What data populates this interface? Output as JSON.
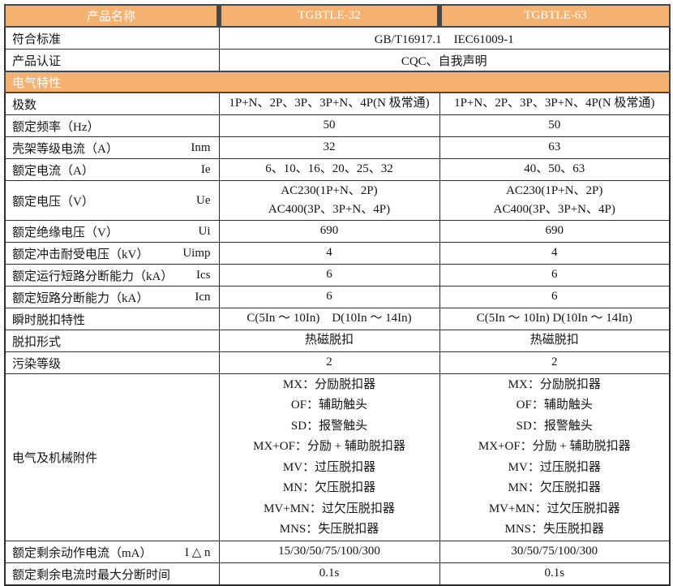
{
  "colors": {
    "accent_orange": "#F4B170",
    "header_text": "#FFFFFF",
    "grid_line": "#2E2E2E",
    "body_text": "#141414",
    "page_background": "#FFFFFF"
  },
  "table": {
    "columns": [
      "产品名称",
      "TGBTLE-32",
      "TGBTLE-63"
    ],
    "rows": [
      {
        "type": "header",
        "cells": [
          "产品名称",
          "TGBTLE-32",
          "TGBTLE-63"
        ]
      },
      {
        "type": "span",
        "label": "符合标准",
        "value": "GB/T16917.1　IEC61009-1"
      },
      {
        "type": "span",
        "label": "产品认证",
        "value": "CQC、自我声明"
      },
      {
        "type": "section",
        "label": "电气特性"
      },
      {
        "type": "normal",
        "label": "极数",
        "symbol": "",
        "values": [
          [
            "1P+N、2P、3P、3P+N、4P(N 极常通)"
          ],
          [
            "1P+N、2P、3P、3P+N、4P(N 极常通)"
          ]
        ]
      },
      {
        "type": "normal",
        "label": "额定频率（Hz）",
        "symbol": "",
        "values": [
          [
            "50"
          ],
          [
            "50"
          ]
        ]
      },
      {
        "type": "normal",
        "label": "壳架等级电流（A）",
        "symbol": "Inm",
        "values": [
          [
            "32"
          ],
          [
            "63"
          ]
        ]
      },
      {
        "type": "normal",
        "label": "额定电流（A）",
        "symbol": "Ie",
        "values": [
          [
            "6、10、16、20、25、32"
          ],
          [
            "40、50、63"
          ]
        ]
      },
      {
        "type": "normal",
        "label": "额定电压（V）",
        "symbol": "Ue",
        "values": [
          [
            "AC230(1P+N、2P)",
            "AC400(3P、3P+N、4P)"
          ],
          [
            "AC230(1P+N、2P)",
            "AC400(3P、3P+N、4P)"
          ]
        ]
      },
      {
        "type": "normal",
        "label": "额定绝缘电压（V）",
        "symbol": "Ui",
        "values": [
          [
            "690"
          ],
          [
            "690"
          ]
        ]
      },
      {
        "type": "normal",
        "label": "额定冲击耐受电压（kV）",
        "symbol": "Uimp",
        "values": [
          [
            "4"
          ],
          [
            "4"
          ]
        ]
      },
      {
        "type": "normal",
        "label": "额定运行短路分断能力（kA）",
        "symbol": "Ics",
        "values": [
          [
            "6"
          ],
          [
            "6"
          ]
        ]
      },
      {
        "type": "normal",
        "label": "额定短路分断能力（kA）",
        "symbol": "Icn",
        "values": [
          [
            "6"
          ],
          [
            "6"
          ]
        ]
      },
      {
        "type": "normal",
        "label": "瞬时脱扣特性",
        "symbol": "",
        "values": [
          [
            "C(5In ～ 10In)　D(10In ～ 14In)"
          ],
          [
            "C(5In ～ 10In) D(10In ～ 14In)"
          ]
        ]
      },
      {
        "type": "normal",
        "label": "脱扣形式",
        "symbol": "",
        "values": [
          [
            "热磁脱扣"
          ],
          [
            "热磁脱扣"
          ]
        ]
      },
      {
        "type": "normal",
        "label": "污染等级",
        "symbol": "",
        "values": [
          [
            "2"
          ],
          [
            "2"
          ]
        ]
      },
      {
        "type": "normal",
        "label": "电气及机械附件",
        "symbol": "",
        "values": [
          [
            "MX：分励脱扣器",
            "OF：辅助触头",
            "SD：报警触头",
            "MX+OF：分励 + 辅助脱扣器",
            "MV：过压脱扣器",
            "MN：欠压脱扣器",
            "MV+MN：过欠压脱扣器",
            "MNS：失压脱扣器"
          ],
          [
            "MX：分励脱扣器",
            "OF：辅助触头",
            "SD：报警触头",
            "MX+OF：分励 + 辅助脱扣器",
            "MV：过压脱扣器",
            "MN：欠压脱扣器",
            "MV+MN：过欠压脱扣器",
            "MNS：失压脱扣器"
          ]
        ]
      },
      {
        "type": "normal",
        "label": "额定剩余动作电流（mA）",
        "symbol": "I △ n",
        "values": [
          [
            "15/30/50/75/100/300"
          ],
          [
            "30/50/75/100/300"
          ]
        ]
      },
      {
        "type": "normal",
        "label": "额定剩余电流时最大分断时间",
        "symbol": "",
        "values": [
          [
            "0.1s"
          ],
          [
            "0.1s"
          ]
        ]
      }
    ]
  }
}
